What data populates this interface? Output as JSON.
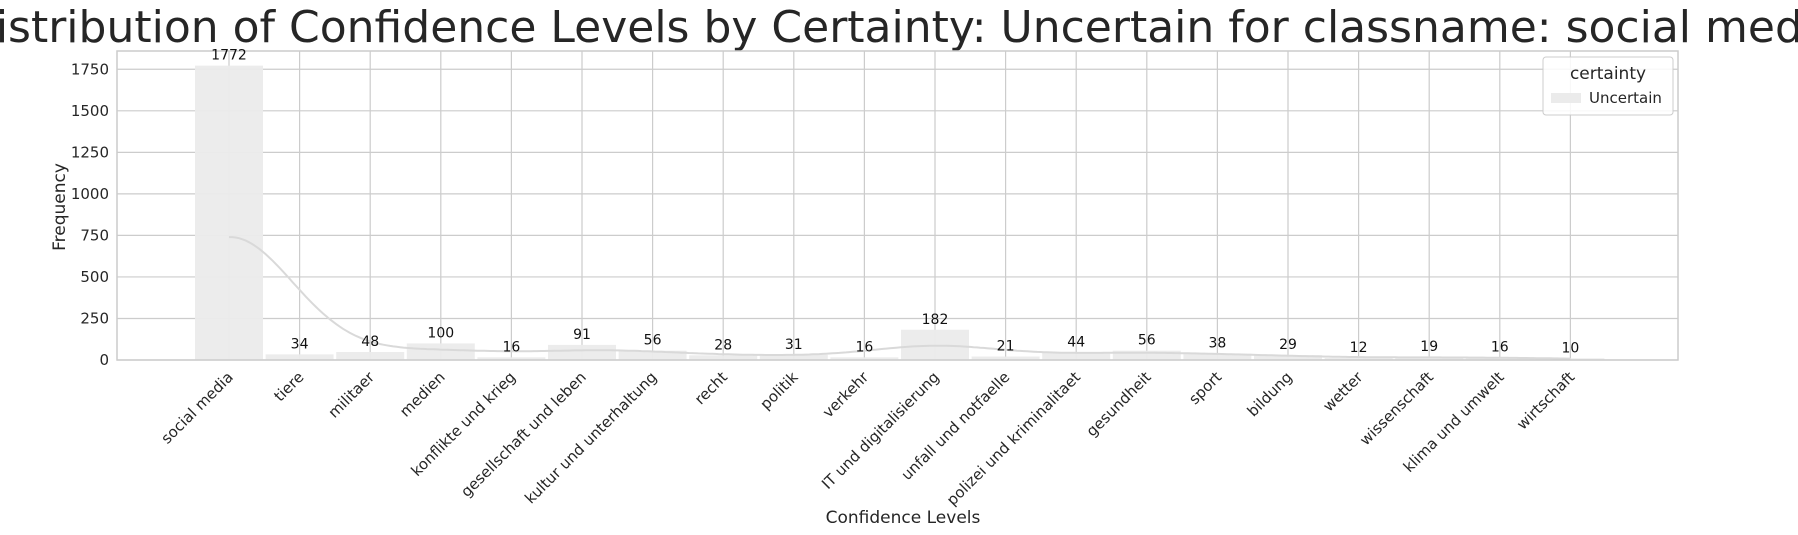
{
  "chart_data": {
    "type": "bar",
    "title": "Distribution of Confidence Levels by Certainty: Uncertain for classname: social media",
    "xlabel": "Confidence Levels",
    "ylabel": "Frequency",
    "ylim": [
      0,
      1860
    ],
    "yticks": [
      0,
      250,
      500,
      750,
      1000,
      1250,
      1500,
      1750
    ],
    "grid": true,
    "legend": {
      "title": "certainty",
      "placement": "top-right",
      "entries": [
        "Uncertain"
      ]
    },
    "categories": [
      "social media",
      "tiere",
      "militaer",
      "medien",
      "konflikte und krieg",
      "gesellschaft und leben",
      "kultur und unterhaltung",
      "recht",
      "politik",
      "verkehr",
      "IT und digitalisierung",
      "unfall und notfaelle",
      "polizei und kriminalitaet",
      "gesundheit",
      "sport",
      "bildung",
      "wetter",
      "wissenschaft",
      "klima und umwelt",
      "wirtschaft"
    ],
    "series": [
      {
        "name": "Uncertain",
        "values": [
          1772,
          34,
          48,
          100,
          16,
          91,
          56,
          28,
          31,
          16,
          182,
          21,
          44,
          56,
          38,
          29,
          12,
          19,
          16,
          10
        ],
        "color": "#ebebeb"
      }
    ],
    "kde_color": "#d9d9d9"
  }
}
